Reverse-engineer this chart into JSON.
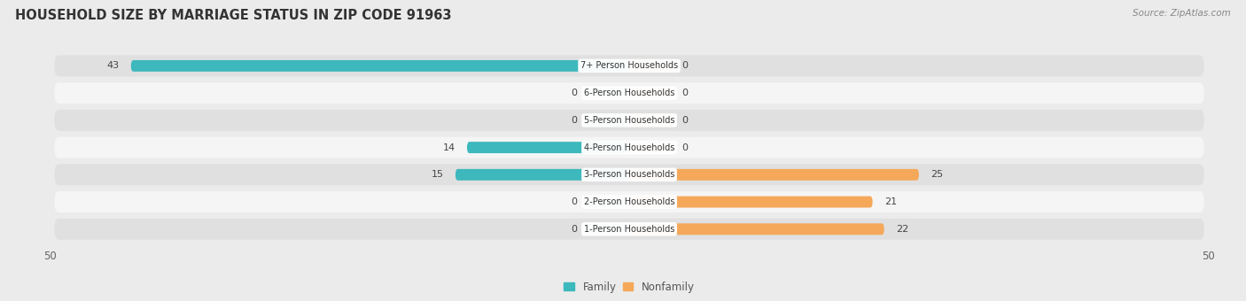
{
  "title": "HOUSEHOLD SIZE BY MARRIAGE STATUS IN ZIP CODE 91963",
  "source": "Source: ZipAtlas.com",
  "categories": [
    "7+ Person Households",
    "6-Person Households",
    "5-Person Households",
    "4-Person Households",
    "3-Person Households",
    "2-Person Households",
    "1-Person Households"
  ],
  "family_values": [
    43,
    0,
    0,
    14,
    15,
    0,
    0
  ],
  "nonfamily_values": [
    0,
    0,
    0,
    0,
    25,
    21,
    22
  ],
  "family_color": "#3db8bc",
  "nonfamily_color": "#f5a85a",
  "family_color_light": "#95d9db",
  "nonfamily_color_light": "#f7cfa4",
  "axis_limit": 50,
  "bg_color": "#ebebeb",
  "row_bg_light": "#f5f5f5",
  "row_bg_dark": "#e0e0e0",
  "title_fontsize": 10.5,
  "source_fontsize": 7.5,
  "tick_fontsize": 8.5,
  "bar_label_fontsize": 8,
  "category_fontsize": 7,
  "legend_fontsize": 8.5
}
